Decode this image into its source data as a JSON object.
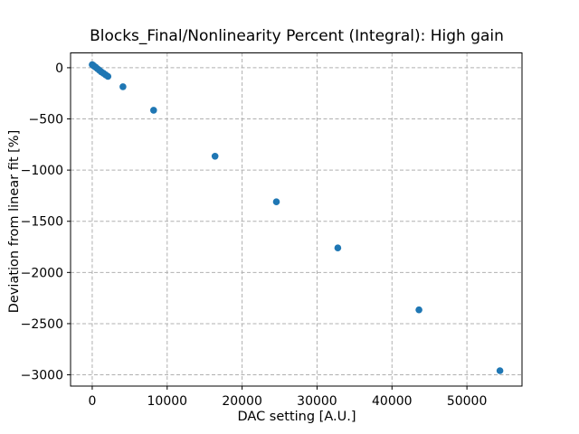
{
  "chart_data": {
    "type": "scatter",
    "title": "Blocks_Final/Nonlinearity Percent (Integral): High gain",
    "xlabel": "DAC setting [A.U.]",
    "ylabel": "Deviation from linear fit [%]",
    "xlim": [
      -2890,
      57350
    ],
    "ylim": [
      -3110,
      145
    ],
    "xticks": [
      0,
      10000,
      20000,
      30000,
      40000,
      50000
    ],
    "yticks": [
      0,
      -500,
      -1000,
      -1500,
      -2000,
      -2500,
      -3000
    ],
    "grid": true,
    "grid_color": "#b0b0b0",
    "axis_color": "#000000",
    "marker_color": "#1f77b4",
    "marker_radius_px": 3.8,
    "legend": null,
    "series": [
      {
        "name": "nonlinearity-points",
        "points": [
          [
            0,
            30
          ],
          [
            100,
            25
          ],
          [
            250,
            15
          ],
          [
            450,
            5
          ],
          [
            700,
            -10
          ],
          [
            950,
            -25
          ],
          [
            1200,
            -40
          ],
          [
            1500,
            -55
          ],
          [
            1800,
            -70
          ],
          [
            2100,
            -85
          ],
          [
            4096,
            -185
          ],
          [
            8192,
            -415
          ],
          [
            16384,
            -865
          ],
          [
            24576,
            -1310
          ],
          [
            32768,
            -1760
          ],
          [
            43600,
            -2365
          ],
          [
            54400,
            -2960
          ]
        ]
      }
    ]
  }
}
